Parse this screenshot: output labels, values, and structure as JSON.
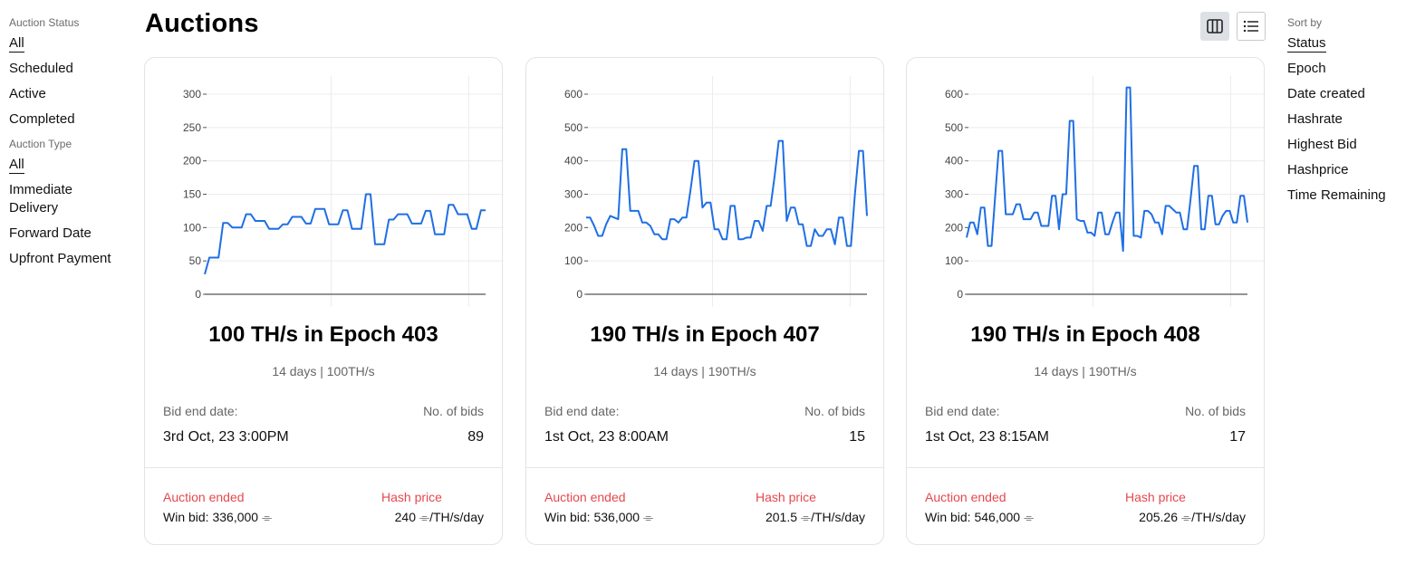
{
  "page": {
    "title": "Auctions"
  },
  "filters": {
    "status": {
      "title": "Auction Status",
      "items": [
        "All",
        "Scheduled",
        "Active",
        "Completed"
      ],
      "selected": "All"
    },
    "type": {
      "title": "Auction Type",
      "items": [
        "All",
        "Immediate Delivery",
        "Forward Date",
        "Upfront Payment"
      ],
      "selected": "All"
    }
  },
  "sort": {
    "title": "Sort by",
    "items": [
      "Status",
      "Epoch",
      "Date created",
      "Hashrate",
      "Highest Bid",
      "Hashprice",
      "Time Remaining"
    ],
    "selected": "Status"
  },
  "view": {
    "grid_icon": "columns-icon",
    "list_icon": "list-icon"
  },
  "colors": {
    "line": "#1f6fe5",
    "ended": "#e5484d",
    "axis": "#555555",
    "grid": "#ececec"
  },
  "labels": {
    "bid_end": "Bid end date:",
    "num_bids": "No. of bids",
    "hash_price": "Hash price",
    "win_bid_prefix": "Win bid: "
  },
  "cards": [
    {
      "title": "100 TH/s in Epoch 403",
      "subtitle": "14 days | 100TH/s",
      "bid_end_date": "3rd Oct, 23 3:00PM",
      "num_bids": "89",
      "status": "Auction ended",
      "win_bid": "Win bid: 336,000 ⌯",
      "hash_price": "240 ⌯/TH/s/day",
      "chart_data": {
        "type": "line",
        "yticks": [
          0,
          50,
          100,
          150,
          200,
          250,
          300
        ],
        "ylim": [
          0,
          300
        ],
        "values": [
          30,
          55,
          55,
          55,
          107,
          107,
          100,
          100,
          100,
          120,
          120,
          110,
          110,
          110,
          98,
          98,
          98,
          105,
          105,
          116,
          116,
          116,
          106,
          106,
          128,
          128,
          128,
          105,
          105,
          105,
          126,
          126,
          98,
          98,
          98,
          150,
          150,
          75,
          75,
          75,
          112,
          112,
          120,
          120,
          120,
          106,
          106,
          106,
          125,
          125,
          90,
          90,
          90,
          134,
          134,
          120,
          120,
          120,
          98,
          98,
          126,
          126
        ]
      }
    },
    {
      "title": "190 TH/s in Epoch 407",
      "subtitle": "14 days | 190TH/s",
      "bid_end_date": "1st Oct, 23 8:00AM",
      "num_bids": "15",
      "status": "Auction ended",
      "win_bid": "Win bid: 536,000 ⌯",
      "hash_price": "201.5 ⌯/TH/s/day",
      "chart_data": {
        "type": "line",
        "yticks": [
          0,
          100,
          200,
          300,
          400,
          500,
          600
        ],
        "ylim": [
          0,
          600
        ],
        "values": [
          230,
          230,
          205,
          175,
          175,
          210,
          235,
          230,
          225,
          435,
          435,
          250,
          250,
          250,
          215,
          215,
          205,
          180,
          180,
          165,
          165,
          225,
          225,
          215,
          230,
          230,
          310,
          400,
          400,
          260,
          275,
          275,
          195,
          195,
          165,
          165,
          265,
          265,
          165,
          165,
          170,
          170,
          220,
          220,
          190,
          265,
          265,
          355,
          460,
          460,
          220,
          260,
          260,
          210,
          210,
          145,
          145,
          195,
          175,
          175,
          195,
          195,
          150,
          230,
          230,
          145,
          145,
          300,
          430,
          430,
          235
        ]
      }
    },
    {
      "title": "190 TH/s in Epoch 408",
      "subtitle": "14 days | 190TH/s",
      "bid_end_date": "1st Oct, 23 8:15AM",
      "num_bids": "17",
      "status": "Auction ended",
      "win_bid": "Win bid: 546,000 ⌯",
      "hash_price": "205.26 ⌯/TH/s/day",
      "chart_data": {
        "type": "line",
        "yticks": [
          0,
          100,
          200,
          300,
          400,
          500,
          600
        ],
        "ylim": [
          0,
          600
        ],
        "values": [
          170,
          215,
          215,
          180,
          260,
          260,
          145,
          145,
          290,
          430,
          430,
          240,
          240,
          240,
          270,
          270,
          225,
          225,
          225,
          245,
          245,
          205,
          205,
          205,
          295,
          295,
          195,
          300,
          300,
          520,
          520,
          225,
          220,
          220,
          185,
          185,
          175,
          245,
          245,
          180,
          180,
          215,
          245,
          245,
          130,
          620,
          620,
          175,
          175,
          170,
          250,
          250,
          240,
          215,
          215,
          180,
          265,
          265,
          255,
          245,
          245,
          195,
          195,
          285,
          385,
          385,
          195,
          195,
          295,
          295,
          210,
          210,
          235,
          250,
          250,
          215,
          215,
          295,
          295,
          215
        ]
      }
    }
  ]
}
